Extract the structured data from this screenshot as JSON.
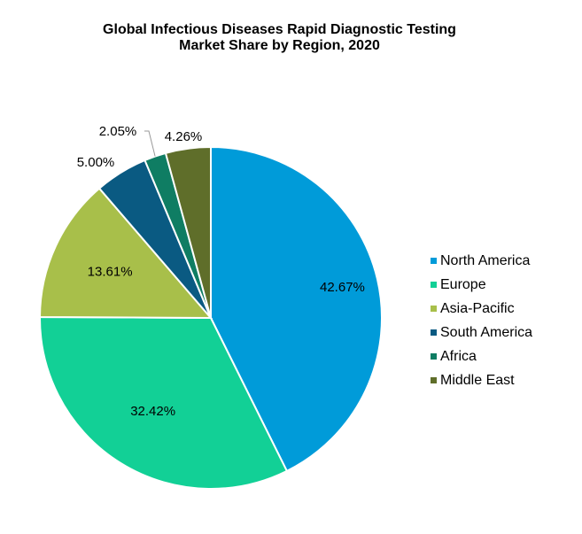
{
  "chart_data": {
    "type": "pie",
    "title_line1": "Global Infectious Diseases Rapid Diagnostic Testing",
    "title_line2": "Market Share by Region, 2020",
    "slices": [
      {
        "name": "North America",
        "value": 42.67,
        "label": "42.67%",
        "color": "#009bd9"
      },
      {
        "name": "Europe",
        "value": 32.42,
        "label": "32.42%",
        "color": "#12d096"
      },
      {
        "name": "Asia-Pacific",
        "value": 13.61,
        "label": "13.61%",
        "color": "#a8bf4a"
      },
      {
        "name": "South America",
        "value": 5.0,
        "label": "5.00%",
        "color": "#0a5a82"
      },
      {
        "name": "Africa",
        "value": 2.05,
        "label": "2.05%",
        "color": "#0f7d63"
      },
      {
        "name": "Middle East",
        "value": 4.26,
        "label": "4.26%",
        "color": "#5f6e2a"
      }
    ],
    "legend_position": "right"
  }
}
